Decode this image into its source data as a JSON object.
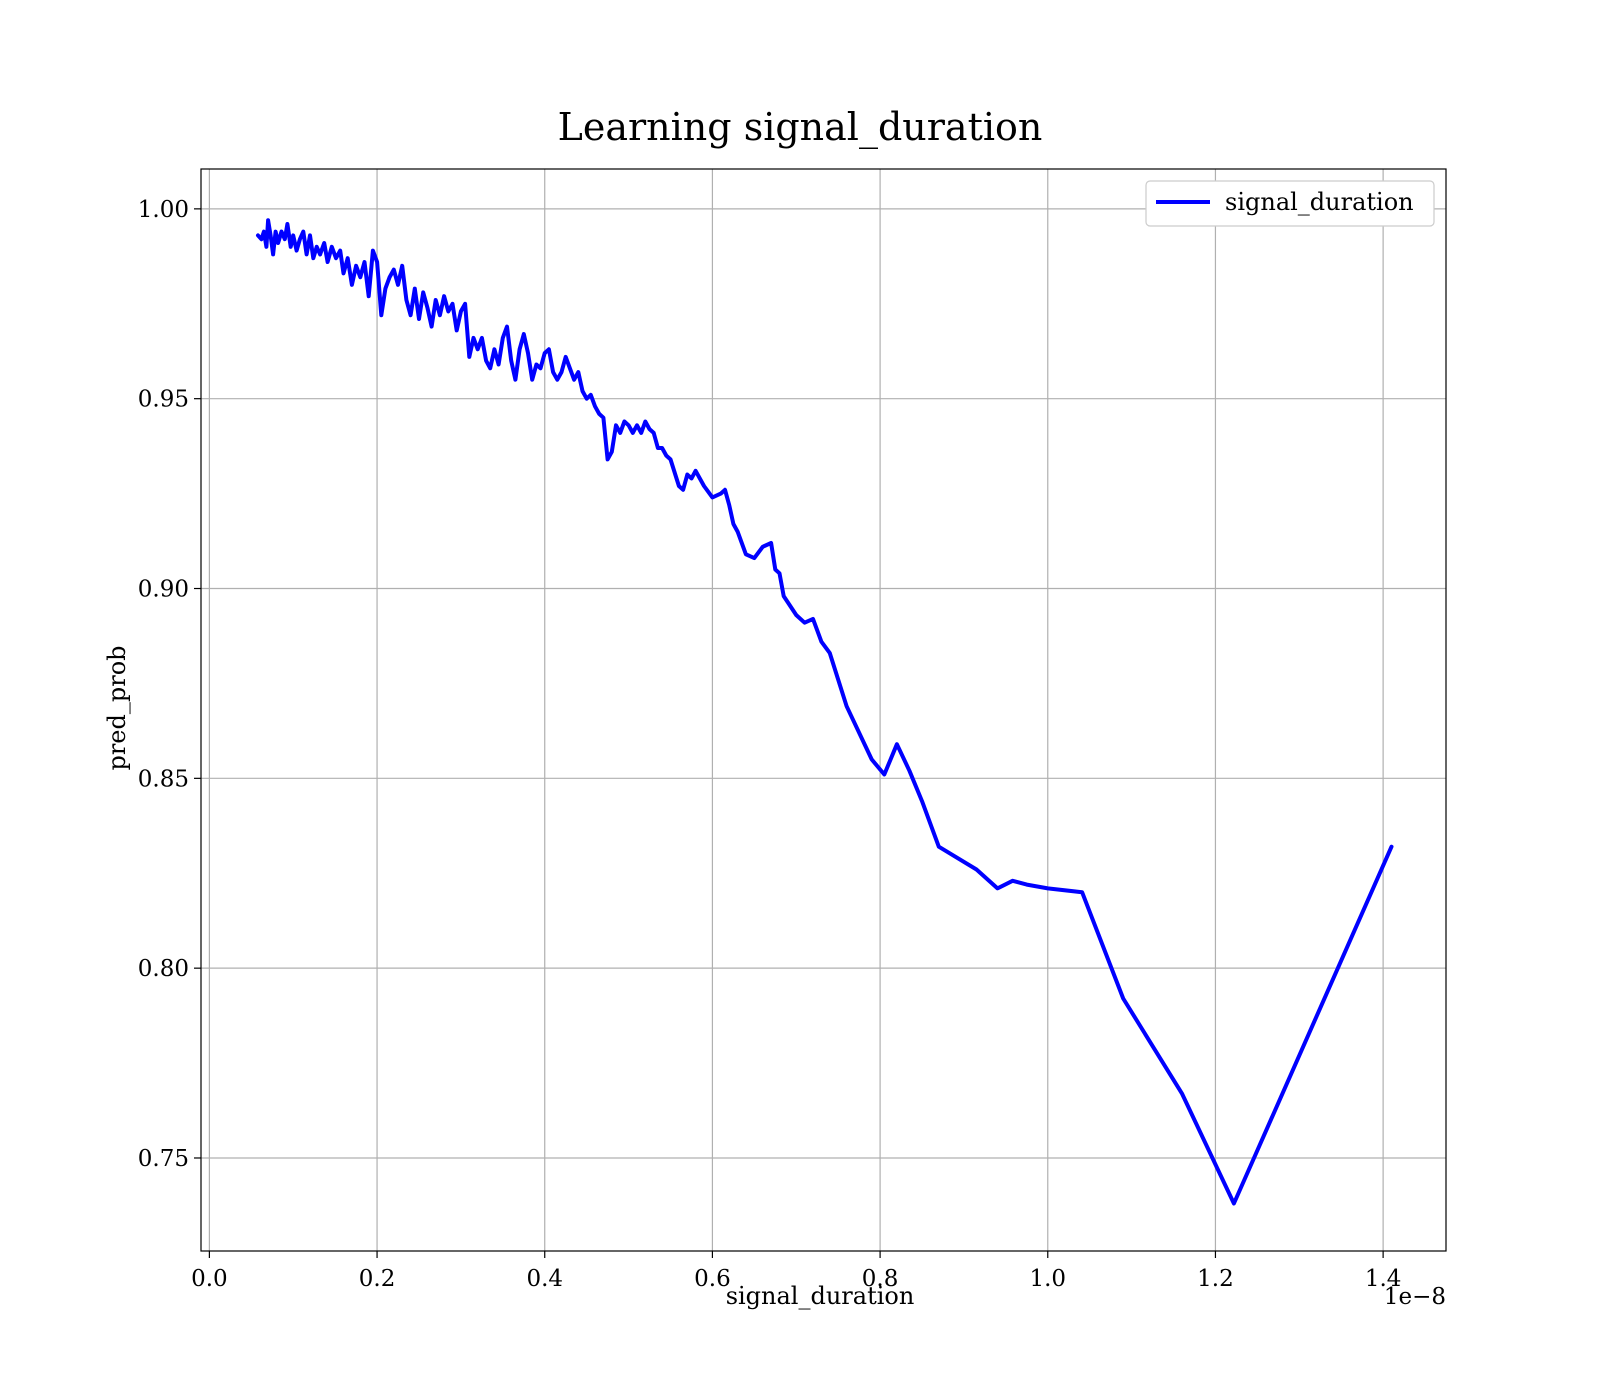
{
  "chart_data": {
    "type": "line",
    "title": "Learning signal_duration",
    "xlabel": "signal_duration",
    "ylabel": "pred_prob",
    "x_offset_label": "1e−8",
    "xlim": [
      -0.01,
      1.475
    ],
    "ylim": [
      0.7255,
      1.0105
    ],
    "x_ticks": [
      0.0,
      0.2,
      0.4,
      0.6,
      0.8,
      1.0,
      1.2,
      1.4
    ],
    "x_tick_labels": [
      "0.0",
      "0.2",
      "0.4",
      "0.6",
      "0.8",
      "1.0",
      "1.2",
      "1.4"
    ],
    "y_ticks": [
      0.75,
      0.8,
      0.85,
      0.9,
      0.95,
      1.0
    ],
    "y_tick_labels": [
      "0.75",
      "0.80",
      "0.85",
      "0.90",
      "0.95",
      "1.00"
    ],
    "grid": true,
    "legend_position": "top-right",
    "series": [
      {
        "name": "signal_duration",
        "color": "#0000ff",
        "x": [
          0.058,
          0.062,
          0.065,
          0.068,
          0.07,
          0.073,
          0.076,
          0.079,
          0.082,
          0.086,
          0.09,
          0.093,
          0.097,
          0.1,
          0.104,
          0.108,
          0.112,
          0.116,
          0.12,
          0.124,
          0.128,
          0.132,
          0.137,
          0.141,
          0.146,
          0.151,
          0.156,
          0.16,
          0.165,
          0.17,
          0.175,
          0.18,
          0.185,
          0.19,
          0.195,
          0.2,
          0.205,
          0.21,
          0.215,
          0.22,
          0.225,
          0.23,
          0.235,
          0.24,
          0.245,
          0.25,
          0.255,
          0.26,
          0.265,
          0.27,
          0.275,
          0.28,
          0.285,
          0.29,
          0.295,
          0.3,
          0.305,
          0.31,
          0.315,
          0.32,
          0.325,
          0.33,
          0.335,
          0.34,
          0.345,
          0.35,
          0.355,
          0.36,
          0.365,
          0.37,
          0.375,
          0.38,
          0.385,
          0.39,
          0.395,
          0.4,
          0.405,
          0.41,
          0.415,
          0.42,
          0.425,
          0.43,
          0.435,
          0.44,
          0.445,
          0.45,
          0.455,
          0.46,
          0.465,
          0.47,
          0.475,
          0.48,
          0.485,
          0.49,
          0.495,
          0.5,
          0.505,
          0.51,
          0.515,
          0.52,
          0.525,
          0.53,
          0.535,
          0.54,
          0.545,
          0.55,
          0.56,
          0.565,
          0.57,
          0.575,
          0.58,
          0.59,
          0.6,
          0.61,
          0.615,
          0.62,
          0.625,
          0.63,
          0.64,
          0.65,
          0.66,
          0.67,
          0.675,
          0.68,
          0.685,
          0.7,
          0.71,
          0.72,
          0.73,
          0.74,
          0.76,
          0.79,
          0.805,
          0.82,
          0.835,
          0.85,
          0.87,
          0.915,
          0.94,
          0.958,
          0.975,
          1.0,
          1.041,
          1.09,
          1.16,
          1.222,
          1.41
        ],
        "y": [
          0.993,
          0.992,
          0.994,
          0.99,
          0.997,
          0.993,
          0.988,
          0.994,
          0.991,
          0.994,
          0.992,
          0.996,
          0.99,
          0.993,
          0.989,
          0.992,
          0.994,
          0.988,
          0.993,
          0.987,
          0.99,
          0.988,
          0.991,
          0.986,
          0.99,
          0.987,
          0.989,
          0.983,
          0.987,
          0.98,
          0.985,
          0.982,
          0.986,
          0.977,
          0.989,
          0.986,
          0.972,
          0.979,
          0.982,
          0.984,
          0.98,
          0.985,
          0.976,
          0.972,
          0.979,
          0.971,
          0.978,
          0.974,
          0.969,
          0.976,
          0.972,
          0.977,
          0.973,
          0.975,
          0.968,
          0.973,
          0.975,
          0.961,
          0.966,
          0.963,
          0.966,
          0.96,
          0.958,
          0.963,
          0.959,
          0.966,
          0.969,
          0.96,
          0.955,
          0.963,
          0.967,
          0.962,
          0.955,
          0.959,
          0.958,
          0.962,
          0.963,
          0.957,
          0.955,
          0.957,
          0.961,
          0.958,
          0.955,
          0.957,
          0.952,
          0.95,
          0.951,
          0.948,
          0.946,
          0.945,
          0.934,
          0.936,
          0.943,
          0.941,
          0.944,
          0.943,
          0.941,
          0.943,
          0.941,
          0.944,
          0.942,
          0.941,
          0.937,
          0.937,
          0.935,
          0.934,
          0.927,
          0.926,
          0.93,
          0.929,
          0.931,
          0.927,
          0.924,
          0.925,
          0.926,
          0.922,
          0.917,
          0.915,
          0.909,
          0.908,
          0.911,
          0.912,
          0.905,
          0.904,
          0.898,
          0.893,
          0.891,
          0.892,
          0.886,
          0.883,
          0.869,
          0.855,
          0.851,
          0.859,
          0.852,
          0.844,
          0.832,
          0.826,
          0.821,
          0.823,
          0.822,
          0.821,
          0.82,
          0.792,
          0.767,
          0.738,
          0.832
        ]
      }
    ]
  }
}
